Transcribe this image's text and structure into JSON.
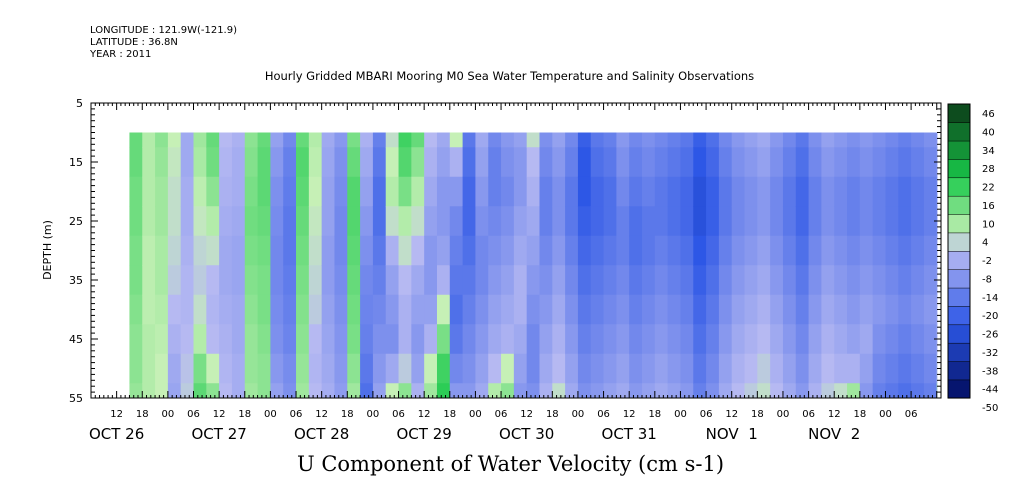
{
  "header": {
    "longitude": "LONGITUDE : 121.9W(-121.9)",
    "latitude": "LATITUDE : 36.8N",
    "year": "YEAR : 2011"
  },
  "chart_data": {
    "type": "heatmap",
    "title": "Hourly Gridded MBARI Mooring M0 Sea Water Temperature and Salinity Observations",
    "xlabel": "",
    "ylabel": "DEPTH (m)",
    "bottom_title": "U Component of Water Velocity (cm s-1)",
    "y_axis": {
      "range": [
        5,
        55
      ],
      "inverted": true,
      "ticks": [
        5,
        15,
        25,
        35,
        45,
        55
      ],
      "data_top_depth": 10
    },
    "x_axis": {
      "units": "hours since OCT 26 00:00, 2011",
      "range": [
        6,
        205
      ],
      "data_start_hour": 15,
      "data_end_hour": 204,
      "hour_ticks": [
        {
          "t": 12,
          "label": "12"
        },
        {
          "t": 18,
          "label": "18"
        },
        {
          "t": 24,
          "label": "00"
        },
        {
          "t": 30,
          "label": "06"
        },
        {
          "t": 36,
          "label": "12"
        },
        {
          "t": 42,
          "label": "18"
        },
        {
          "t": 48,
          "label": "00"
        },
        {
          "t": 54,
          "label": "06"
        },
        {
          "t": 60,
          "label": "12"
        },
        {
          "t": 66,
          "label": "18"
        },
        {
          "t": 72,
          "label": "00"
        },
        {
          "t": 78,
          "label": "06"
        },
        {
          "t": 84,
          "label": "12"
        },
        {
          "t": 90,
          "label": "18"
        },
        {
          "t": 96,
          "label": "00"
        },
        {
          "t": 102,
          "label": "06"
        },
        {
          "t": 108,
          "label": "12"
        },
        {
          "t": 114,
          "label": "18"
        },
        {
          "t": 120,
          "label": "00"
        },
        {
          "t": 126,
          "label": "06"
        },
        {
          "t": 132,
          "label": "12"
        },
        {
          "t": 138,
          "label": "18"
        },
        {
          "t": 144,
          "label": "00"
        },
        {
          "t": 150,
          "label": "06"
        },
        {
          "t": 156,
          "label": "12"
        },
        {
          "t": 162,
          "label": "18"
        },
        {
          "t": 168,
          "label": "00"
        },
        {
          "t": 174,
          "label": "06"
        },
        {
          "t": 180,
          "label": "12"
        },
        {
          "t": 186,
          "label": "18"
        },
        {
          "t": 192,
          "label": "00"
        },
        {
          "t": 198,
          "label": "06"
        }
      ],
      "day_labels": [
        {
          "t": 12,
          "label": "OCT 26"
        },
        {
          "t": 36,
          "label": "OCT 27"
        },
        {
          "t": 60,
          "label": "OCT 28"
        },
        {
          "t": 84,
          "label": "OCT 29"
        },
        {
          "t": 108,
          "label": "OCT 30"
        },
        {
          "t": 132,
          "label": "OCT 31"
        },
        {
          "t": 156,
          "label": "NOV  1"
        },
        {
          "t": 180,
          "label": "NOV  2"
        }
      ]
    },
    "colorbar": {
      "levels": [
        -50,
        -44,
        -38,
        -32,
        -26,
        -20,
        -14,
        -8,
        -2,
        4,
        10,
        16,
        22,
        28,
        34,
        40,
        46
      ],
      "labels": [
        "46",
        "40",
        "34",
        "28",
        "22",
        "16",
        "10",
        "4",
        "-2",
        "-8",
        "-14",
        "-20",
        "-26",
        "-32",
        "-38",
        "-44",
        "-50"
      ],
      "low_color": "#000b5e",
      "mid_low_color": "#2d57e6",
      "neutral_low_color": "#b6b9f2",
      "neutral_high_color": "#c6f0b6",
      "mid_high_color": "#19c94a",
      "high_color": "#0b3a18"
    },
    "columns": [
      {
        "t": 15,
        "u": [
          14,
          14,
          13,
          13,
          12,
          12,
          11,
          10,
          10,
          9
        ]
      },
      {
        "t": 18,
        "u": [
          6,
          6,
          6,
          6,
          5,
          5,
          5,
          6,
          6,
          6
        ]
      },
      {
        "t": 21,
        "u": [
          10,
          9,
          8,
          8,
          7,
          7,
          6,
          5,
          4,
          4
        ]
      },
      {
        "t": 24,
        "u": [
          4,
          3,
          2,
          2,
          1,
          0,
          -2,
          -4,
          -6,
          -7
        ]
      },
      {
        "t": 27,
        "u": [
          -6,
          -6,
          -5,
          -5,
          -4,
          -3,
          -3,
          -2,
          -1,
          0
        ]
      },
      {
        "t": 30,
        "u": [
          8,
          7,
          5,
          3,
          1,
          0,
          2,
          6,
          12,
          15
        ]
      },
      {
        "t": 33,
        "u": [
          14,
          13,
          10,
          6,
          2,
          -2,
          -3,
          -2,
          4,
          10
        ]
      },
      {
        "t": 36,
        "u": [
          -2,
          -3,
          -4,
          -5,
          -6,
          -6,
          -5,
          -4,
          -3,
          -2
        ]
      },
      {
        "t": 39,
        "u": [
          -4,
          -5,
          -5,
          -6,
          -7,
          -7,
          -6,
          -6,
          -5,
          -5
        ]
      },
      {
        "t": 42,
        "u": [
          10,
          11,
          12,
          13,
          12,
          11,
          10,
          9,
          9,
          8
        ]
      },
      {
        "t": 45,
        "u": [
          14,
          15,
          15,
          14,
          13,
          12,
          12,
          11,
          10,
          10
        ]
      },
      {
        "t": 48,
        "u": [
          -8,
          -10,
          -12,
          -13,
          -14,
          -14,
          -13,
          -12,
          -10,
          -8
        ]
      },
      {
        "t": 51,
        "u": [
          -14,
          -16,
          -17,
          -18,
          -18,
          -17,
          -16,
          -15,
          -13,
          -12
        ]
      },
      {
        "t": 54,
        "u": [
          14,
          16,
          15,
          14,
          13,
          12,
          11,
          10,
          9,
          8
        ]
      },
      {
        "t": 57,
        "u": [
          6,
          5,
          4,
          3,
          2,
          1,
          0,
          -2,
          -3,
          -2
        ]
      },
      {
        "t": 60,
        "u": [
          -6,
          -7,
          -8,
          -8,
          -9,
          -9,
          -8,
          -7,
          -6,
          -5
        ]
      },
      {
        "t": 63,
        "u": [
          -10,
          -12,
          -13,
          -14,
          -14,
          -13,
          -12,
          -11,
          -10,
          -9
        ]
      },
      {
        "t": 66,
        "u": [
          12,
          14,
          16,
          16,
          15,
          14,
          13,
          12,
          10,
          8
        ]
      },
      {
        "t": 69,
        "u": [
          -4,
          -6,
          -8,
          -10,
          -12,
          -14,
          -15,
          -16,
          -18,
          -20
        ]
      },
      {
        "t": 72,
        "u": [
          -16,
          -18,
          -20,
          -20,
          -18,
          -16,
          -14,
          -12,
          -10,
          -8
        ]
      },
      {
        "t": 75,
        "u": [
          2,
          4,
          6,
          2,
          -4,
          -8,
          -10,
          -12,
          -6,
          4
        ]
      },
      {
        "t": 78,
        "u": [
          18,
          16,
          12,
          6,
          2,
          -2,
          -4,
          -4,
          0,
          10
        ]
      },
      {
        "t": 81,
        "u": [
          14,
          10,
          6,
          2,
          -2,
          -6,
          -8,
          -10,
          -8,
          -4
        ]
      },
      {
        "t": 84,
        "u": [
          -2,
          -4,
          -6,
          -8,
          -10,
          -10,
          -8,
          -4,
          4,
          8
        ]
      },
      {
        "t": 87,
        "u": [
          -6,
          -8,
          -10,
          -10,
          -8,
          -4,
          4,
          12,
          18,
          20
        ]
      },
      {
        "t": 90,
        "u": [
          4,
          -4,
          -10,
          -14,
          -16,
          -18,
          -20,
          -18,
          -14,
          -10
        ]
      },
      {
        "t": 93,
        "u": [
          -18,
          -20,
          -22,
          -22,
          -20,
          -18,
          -16,
          -14,
          -12,
          -10
        ]
      },
      {
        "t": 96,
        "u": [
          -6,
          -8,
          -10,
          -12,
          -14,
          -14,
          -12,
          -10,
          -8,
          -6
        ]
      },
      {
        "t": 99,
        "u": [
          -14,
          -16,
          -16,
          -14,
          -12,
          -10,
          -8,
          -6,
          -2,
          6
        ]
      },
      {
        "t": 102,
        "u": [
          -10,
          -12,
          -14,
          -12,
          -10,
          -8,
          -6,
          -4,
          4,
          10
        ]
      },
      {
        "t": 105,
        "u": [
          -8,
          -10,
          -10,
          -8,
          -6,
          -4,
          -4,
          -6,
          -8,
          -10
        ]
      },
      {
        "t": 108,
        "u": [
          2,
          -2,
          -4,
          -6,
          -8,
          -10,
          -12,
          -14,
          -14,
          -12
        ]
      },
      {
        "t": 111,
        "u": [
          -12,
          -14,
          -16,
          -16,
          -14,
          -12,
          -10,
          -8,
          -6,
          -4
        ]
      },
      {
        "t": 114,
        "u": [
          -8,
          -10,
          -12,
          -12,
          -10,
          -8,
          -6,
          -4,
          -2,
          2
        ]
      },
      {
        "t": 117,
        "u": [
          -14,
          -16,
          -18,
          -18,
          -16,
          -14,
          -12,
          -10,
          -8,
          -6
        ]
      },
      {
        "t": 120,
        "u": [
          -24,
          -26,
          -26,
          -24,
          -22,
          -20,
          -18,
          -16,
          -14,
          -12
        ]
      },
      {
        "t": 123,
        "u": [
          -18,
          -20,
          -22,
          -22,
          -20,
          -18,
          -16,
          -14,
          -12,
          -10
        ]
      },
      {
        "t": 126,
        "u": [
          -16,
          -18,
          -20,
          -20,
          -18,
          -16,
          -14,
          -12,
          -10,
          -8
        ]
      },
      {
        "t": 129,
        "u": [
          -10,
          -12,
          -14,
          -16,
          -16,
          -14,
          -12,
          -10,
          -8,
          -6
        ]
      },
      {
        "t": 132,
        "u": [
          -14,
          -16,
          -18,
          -20,
          -20,
          -18,
          -16,
          -14,
          -12,
          -10
        ]
      },
      {
        "t": 135,
        "u": [
          -12,
          -14,
          -16,
          -18,
          -18,
          -16,
          -14,
          -12,
          -10,
          -8
        ]
      },
      {
        "t": 138,
        "u": [
          -14,
          -16,
          -18,
          -18,
          -16,
          -14,
          -12,
          -10,
          -8,
          -6
        ]
      },
      {
        "t": 141,
        "u": [
          -16,
          -18,
          -20,
          -20,
          -18,
          -16,
          -14,
          -12,
          -10,
          -8
        ]
      },
      {
        "t": 144,
        "u": [
          -18,
          -20,
          -22,
          -22,
          -20,
          -18,
          -16,
          -14,
          -12,
          -10
        ]
      },
      {
        "t": 147,
        "u": [
          -24,
          -26,
          -28,
          -28,
          -26,
          -24,
          -22,
          -20,
          -18,
          -16
        ]
      },
      {
        "t": 150,
        "u": [
          -20,
          -22,
          -24,
          -24,
          -22,
          -20,
          -18,
          -16,
          -14,
          -12
        ]
      },
      {
        "t": 153,
        "u": [
          -14,
          -16,
          -18,
          -18,
          -16,
          -14,
          -12,
          -10,
          -8,
          -6
        ]
      },
      {
        "t": 156,
        "u": [
          -10,
          -12,
          -14,
          -14,
          -12,
          -10,
          -8,
          -6,
          -4,
          -2
        ]
      },
      {
        "t": 159,
        "u": [
          -8,
          -10,
          -12,
          -12,
          -10,
          -8,
          -6,
          -4,
          -2,
          0
        ]
      },
      {
        "t": 162,
        "u": [
          -6,
          -8,
          -10,
          -10,
          -8,
          -6,
          -4,
          -2,
          0,
          2
        ]
      },
      {
        "t": 165,
        "u": [
          -10,
          -12,
          -14,
          -14,
          -12,
          -10,
          -8,
          -6,
          -4,
          -2
        ]
      },
      {
        "t": 168,
        "u": [
          -14,
          -16,
          -18,
          -18,
          -16,
          -14,
          -12,
          -10,
          -8,
          -6
        ]
      },
      {
        "t": 171,
        "u": [
          -18,
          -20,
          -22,
          -22,
          -20,
          -18,
          -16,
          -14,
          -12,
          -10
        ]
      },
      {
        "t": 174,
        "u": [
          -12,
          -14,
          -16,
          -16,
          -14,
          -12,
          -10,
          -8,
          -6,
          -4
        ]
      },
      {
        "t": 177,
        "u": [
          -8,
          -10,
          -12,
          -12,
          -10,
          -8,
          -6,
          -4,
          -2,
          0
        ]
      },
      {
        "t": 180,
        "u": [
          -10,
          -12,
          -14,
          -14,
          -12,
          -10,
          -8,
          -6,
          -4,
          2
        ]
      },
      {
        "t": 183,
        "u": [
          -12,
          -14,
          -16,
          -16,
          -14,
          -12,
          -10,
          -8,
          -4,
          8
        ]
      },
      {
        "t": 186,
        "u": [
          -10,
          -12,
          -14,
          -14,
          -12,
          -10,
          -8,
          -6,
          -8,
          -10
        ]
      },
      {
        "t": 189,
        "u": [
          -12,
          -14,
          -16,
          -16,
          -14,
          -12,
          -10,
          -12,
          -14,
          -16
        ]
      },
      {
        "t": 192,
        "u": [
          -14,
          -16,
          -18,
          -18,
          -16,
          -14,
          -12,
          -14,
          -16,
          -18
        ]
      },
      {
        "t": 195,
        "u": [
          -16,
          -18,
          -20,
          -20,
          -18,
          -16,
          -14,
          -16,
          -18,
          -20
        ]
      },
      {
        "t": 198,
        "u": [
          -14,
          -16,
          -18,
          -18,
          -16,
          -14,
          -12,
          -14,
          -16,
          -18
        ]
      },
      {
        "t": 201,
        "u": [
          -12,
          -14,
          -16,
          -16,
          -14,
          -12,
          -10,
          -12,
          -14,
          -16
        ]
      },
      {
        "t": 204,
        "u": [
          -8,
          -10,
          -12,
          -12,
          -10,
          -8,
          -6,
          -4,
          0,
          6
        ]
      }
    ],
    "column_depths": [
      10,
      15,
      20,
      25,
      30,
      35,
      40,
      45,
      50,
      55
    ]
  }
}
